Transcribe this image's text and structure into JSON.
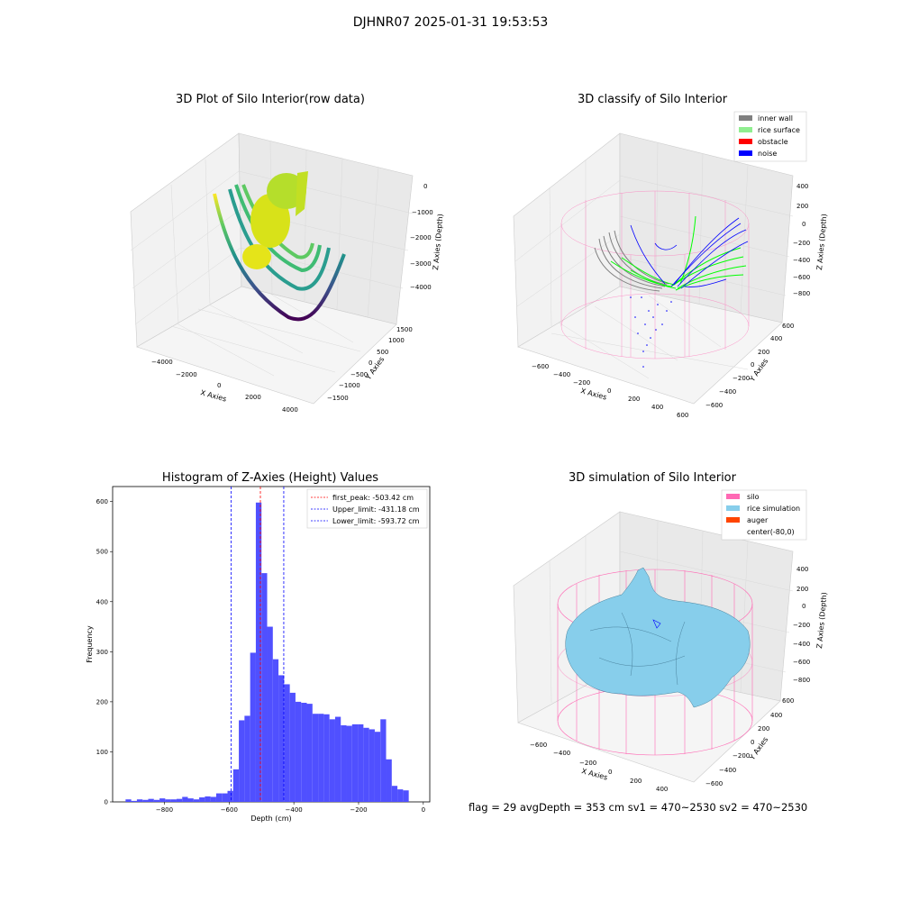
{
  "suptitle": "DJHNR07 2025-01-31 19:53:53",
  "footer": "flag = 29  avgDepth = 353 cm  sv1 = 470~2530  sv2 = 470~2530",
  "colors": {
    "inner_wall": "#808080",
    "rice_surface": "#90ee90",
    "obstacle": "#ff0000",
    "noise": "#0000ff",
    "silo": "#ff69b4",
    "rice_simulation": "#87ceeb",
    "auger": "#ff4500",
    "hist_bar": "#5050ff",
    "first_peak_line": "#ff0000",
    "limit_line": "#0000ff"
  },
  "panels": {
    "raw": {
      "title": "3D Plot of Silo Interior(row data)",
      "xlabel": "X Axies",
      "ylabel": "Y Axies",
      "zlabel": "Z Axies (Depth)",
      "xticks": [
        "−4000",
        "−2000",
        "0",
        "2000",
        "4000"
      ],
      "yticks": [
        "1500",
        "1000",
        "500",
        "0",
        "−500",
        "−1000",
        "−1500"
      ],
      "zticks": [
        "0",
        "−1000",
        "−2000",
        "−3000",
        "−4000"
      ]
    },
    "classify": {
      "title": "3D classify of Silo Interior",
      "xlabel": "X Axies",
      "ylabel": "Y Axies",
      "zlabel": "Z Axies (Depth)",
      "xticks": [
        "−600",
        "−400",
        "−200",
        "0",
        "200",
        "400",
        "600"
      ],
      "yticks": [
        "600",
        "400",
        "200",
        "0",
        "−200",
        "−400",
        "−600"
      ],
      "zticks": [
        "400",
        "200",
        "0",
        "−200",
        "−400",
        "−600",
        "−800"
      ],
      "legend": [
        {
          "label": "inner wall",
          "color": "#808080"
        },
        {
          "label": "rice surface",
          "color": "#90ee90"
        },
        {
          "label": "obstacle",
          "color": "#ff0000"
        },
        {
          "label": "noise",
          "color": "#0000ff"
        }
      ]
    },
    "simulation": {
      "title": "3D simulation of Silo Interior",
      "xlabel": "X Axies",
      "ylabel": "Y Axies",
      "zlabel": "Z Axies (Depth)",
      "xticks": [
        "−600",
        "−400",
        "−200",
        "0",
        "200",
        "400"
      ],
      "yticks": [
        "600",
        "400",
        "200",
        "0",
        "−200",
        "−400",
        "−600"
      ],
      "zticks": [
        "400",
        "200",
        "0",
        "−200",
        "−400",
        "−600",
        "−800"
      ],
      "legend": [
        {
          "label": "silo",
          "color": "#ff69b4"
        },
        {
          "label": "rice simulation",
          "color": "#87ceeb"
        },
        {
          "label": "auger",
          "color": "#ff4500"
        },
        {
          "label": "center(-80,0)",
          "color": ""
        }
      ]
    }
  },
  "chart_data": [
    {
      "type": "scatter",
      "title": "3D Plot of Silo Interior(row data)",
      "xlabel": "X Axies",
      "ylabel": "Y Axies",
      "zlabel": "Z Axies (Depth)",
      "xlim": [
        -4500,
        4500
      ],
      "ylim": [
        -1800,
        1800
      ],
      "zlim": [
        -4500,
        300
      ]
    },
    {
      "type": "scatter",
      "title": "3D classify of Silo Interior",
      "xlabel": "X Axies",
      "ylabel": "Y Axies",
      "zlabel": "Z Axies (Depth)",
      "xlim": [
        -700,
        700
      ],
      "ylim": [
        -700,
        700
      ],
      "zlim": [
        -900,
        500
      ],
      "series": [
        {
          "name": "inner wall"
        },
        {
          "name": "rice surface"
        },
        {
          "name": "obstacle"
        },
        {
          "name": "noise"
        }
      ],
      "legend_position": "top-right"
    },
    {
      "type": "bar",
      "title": "Histogram of Z-Axies (Height) Values",
      "xlabel": "Depth (cm)",
      "ylabel": "Frequency",
      "xlim": [
        -960,
        20
      ],
      "ylim": [
        0,
        630
      ],
      "xticks": [
        -800,
        -600,
        -400,
        -200,
        0
      ],
      "yticks": [
        0,
        100,
        200,
        300,
        400,
        500,
        600
      ],
      "bin_start": -920,
      "bin_width": 17.5,
      "values": [
        5,
        2,
        5,
        4,
        6,
        4,
        7,
        5,
        5,
        6,
        10,
        7,
        5,
        9,
        11,
        10,
        17,
        17,
        22,
        65,
        163,
        172,
        298,
        598,
        457,
        350,
        285,
        253,
        235,
        218,
        200,
        198,
        196,
        176,
        176,
        175,
        165,
        170,
        153,
        152,
        155,
        155,
        148,
        145,
        140,
        165,
        85,
        32,
        25,
        23
      ],
      "lines": [
        {
          "name": "first_peak: -503.42 cm",
          "x": -503.42,
          "color": "#ff0000"
        },
        {
          "name": "Upper_limit: -431.18 cm",
          "x": -431.18,
          "color": "#0000ff"
        },
        {
          "name": "Lower_limit: -593.72 cm",
          "x": -593.72,
          "color": "#0000ff"
        }
      ],
      "legend_position": "top-right"
    },
    {
      "type": "area",
      "title": "3D simulation of Silo Interior",
      "xlabel": "X Axies",
      "ylabel": "Y Axies",
      "zlabel": "Z Axies (Depth)",
      "xlim": [
        -700,
        500
      ],
      "ylim": [
        -700,
        700
      ],
      "zlim": [
        -900,
        500
      ],
      "series": [
        {
          "name": "silo"
        },
        {
          "name": "rice simulation"
        },
        {
          "name": "auger"
        },
        {
          "name": "center(-80,0)"
        }
      ],
      "legend_position": "top-right"
    }
  ]
}
